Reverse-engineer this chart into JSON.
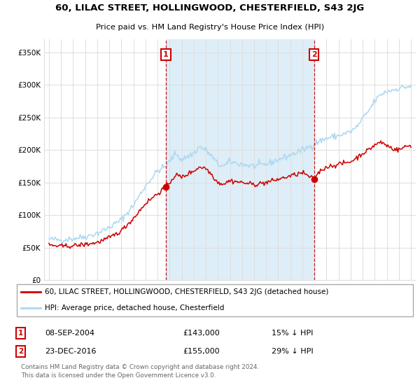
{
  "title": "60, LILAC STREET, HOLLINGWOOD, CHESTERFIELD, S43 2JG",
  "subtitle": "Price paid vs. HM Land Registry's House Price Index (HPI)",
  "legend_line1": "60, LILAC STREET, HOLLINGWOOD, CHESTERFIELD, S43 2JG (detached house)",
  "legend_line2": "HPI: Average price, detached house, Chesterfield",
  "sale1_date": "08-SEP-2004",
  "sale1_price": "£143,000",
  "sale1_hpi": "15% ↓ HPI",
  "sale2_date": "23-DEC-2016",
  "sale2_price": "£155,000",
  "sale2_hpi": "29% ↓ HPI",
  "sale1_year": 2004.69,
  "sale1_value": 143000,
  "sale2_year": 2016.97,
  "sale2_value": 155000,
  "hpi_color": "#add8f0",
  "price_color": "#cc0000",
  "vline_color": "#cc0000",
  "shade_color": "#ddeef8",
  "ylim": [
    0,
    370000
  ],
  "yticks": [
    0,
    50000,
    100000,
    150000,
    200000,
    250000,
    300000,
    350000
  ],
  "ytick_labels": [
    "£0",
    "£50K",
    "£100K",
    "£150K",
    "£200K",
    "£250K",
    "£300K",
    "£350K"
  ],
  "footer": "Contains HM Land Registry data © Crown copyright and database right 2024.\nThis data is licensed under the Open Government Licence v3.0.",
  "background_color": "#ffffff",
  "grid_color": "#dddddd"
}
